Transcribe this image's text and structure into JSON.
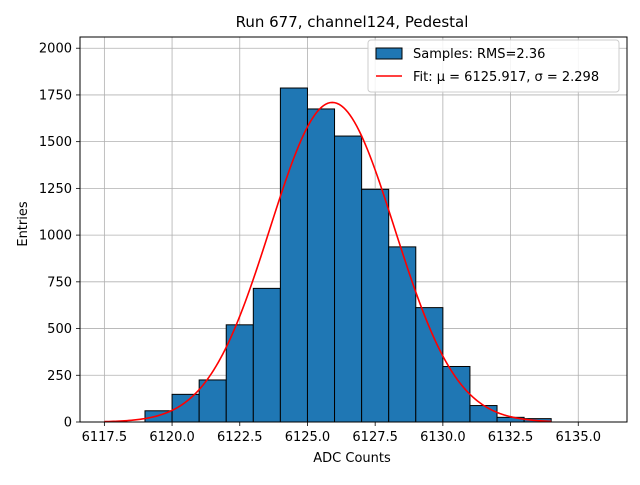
{
  "chart_data": {
    "type": "bar",
    "title": "Run 677, channel124, Pedestal",
    "xlabel": "ADC Counts",
    "ylabel": "Entries",
    "xlim": [
      6116.6,
      6136.8
    ],
    "ylim": [
      0,
      2060
    ],
    "grid": true,
    "legend_position": "top-right",
    "x_ticks": [
      6117.5,
      6120.0,
      6122.5,
      6125.0,
      6127.5,
      6130.0,
      6132.5,
      6135.0
    ],
    "x_tick_labels": [
      "6117.5",
      "6120.0",
      "6122.5",
      "6125.0",
      "6127.5",
      "6130.0",
      "6132.5",
      "6135.0"
    ],
    "y_ticks": [
      0,
      250,
      500,
      750,
      1000,
      1250,
      1500,
      1750,
      2000
    ],
    "y_tick_labels": [
      "0",
      "250",
      "500",
      "750",
      "1000",
      "1250",
      "1500",
      "1750",
      "2000"
    ],
    "histogram": {
      "name": "Samples: RMS=2.36",
      "color": "#1f77b4",
      "edgecolor": "#000000",
      "bins": [
        {
          "x0": 6119,
          "x1": 6120,
          "value": 60
        },
        {
          "x0": 6120,
          "x1": 6121,
          "value": 148
        },
        {
          "x0": 6121,
          "x1": 6122,
          "value": 225
        },
        {
          "x0": 6122,
          "x1": 6123,
          "value": 520
        },
        {
          "x0": 6123,
          "x1": 6124,
          "value": 715
        },
        {
          "x0": 6124,
          "x1": 6125,
          "value": 1787
        },
        {
          "x0": 6125,
          "x1": 6126,
          "value": 1675
        },
        {
          "x0": 6126,
          "x1": 6127,
          "value": 1530
        },
        {
          "x0": 6127,
          "x1": 6128,
          "value": 1245
        },
        {
          "x0": 6128,
          "x1": 6129,
          "value": 937
        },
        {
          "x0": 6129,
          "x1": 6130,
          "value": 612
        },
        {
          "x0": 6130,
          "x1": 6131,
          "value": 297
        },
        {
          "x0": 6131,
          "x1": 6132,
          "value": 88
        },
        {
          "x0": 6132,
          "x1": 6133,
          "value": 25
        },
        {
          "x0": 6133,
          "x1": 6134,
          "value": 18
        }
      ]
    },
    "fit": {
      "name": "Fit: μ = 6125.917, σ = 2.298",
      "color": "#ff0000",
      "mu": 6125.917,
      "sigma": 2.298,
      "amplitude": 1710,
      "x_start": 6117.5,
      "x_end": 6134.0
    }
  }
}
